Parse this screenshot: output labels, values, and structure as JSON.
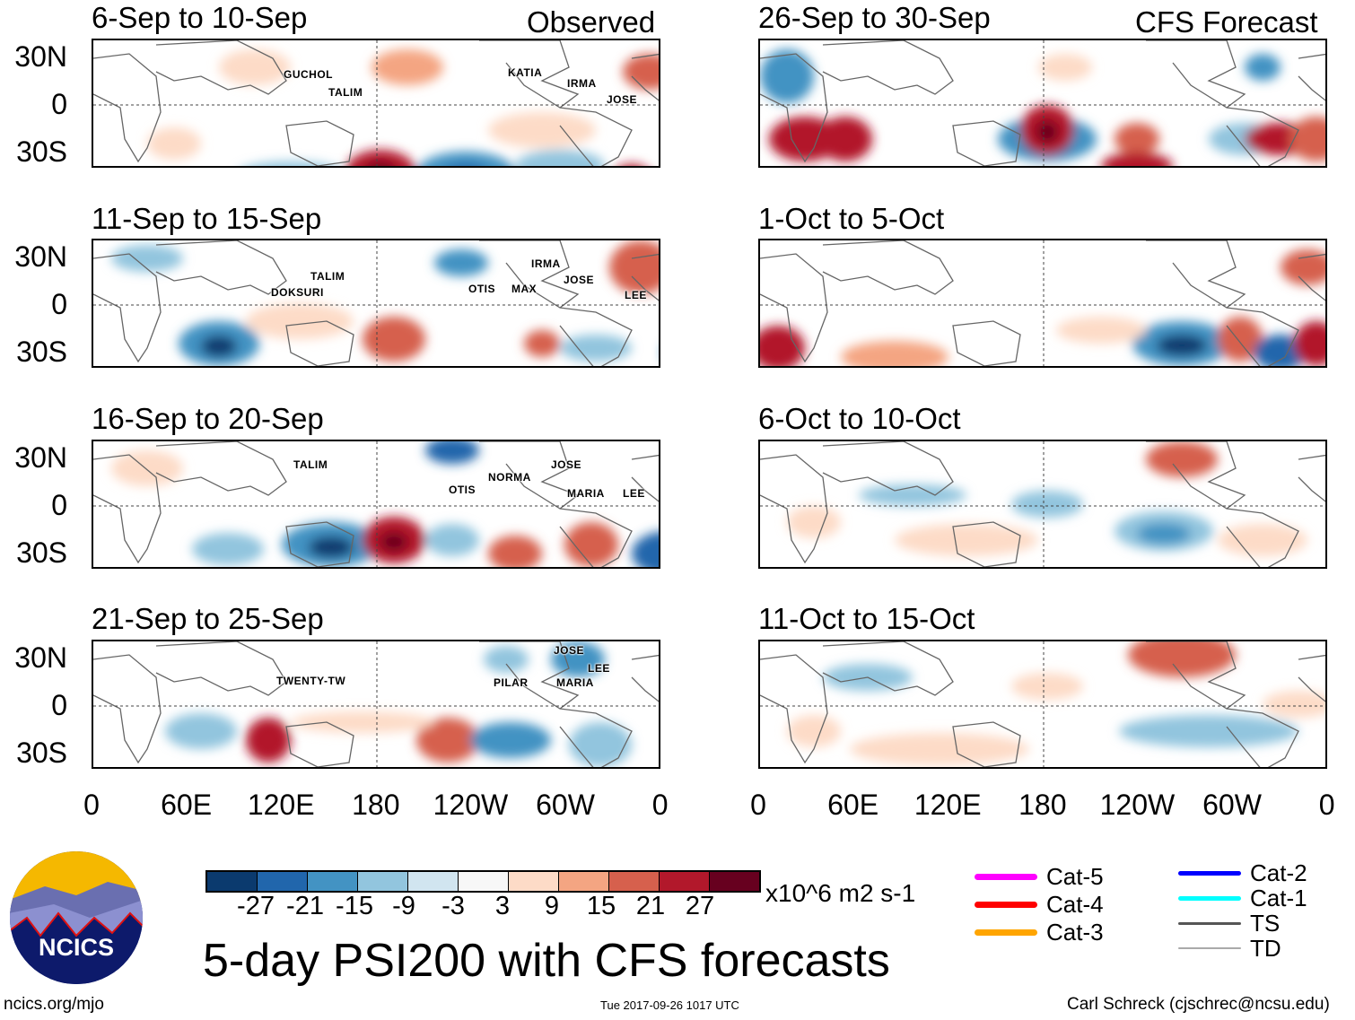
{
  "header": {
    "observed_label": "Observed",
    "forecast_label": "CFS Forecast"
  },
  "lat_labels": [
    "30N",
    "0",
    "30S"
  ],
  "lon_labels": [
    "0",
    "60E",
    "120E",
    "180",
    "120W",
    "60W",
    "0"
  ],
  "panels": [
    {
      "title": "6-Sep to 10-Sep",
      "storms": [
        "GUCHOL",
        "TALIM",
        "KATIA",
        "IRMA",
        "JOSE"
      ]
    },
    {
      "title": "11-Sep to 15-Sep",
      "storms": [
        "TALIM",
        "DOKSURI",
        "OTIS",
        "MAX",
        "IRMA",
        "JOSE",
        "LEE"
      ]
    },
    {
      "title": "16-Sep to 20-Sep",
      "storms": [
        "TALIM",
        "OTIS",
        "NORMA",
        "JOSE",
        "MARIA",
        "LEE"
      ]
    },
    {
      "title": "21-Sep to 25-Sep",
      "storms": [
        "TWENTY-TW",
        "PILAR",
        "JOSE",
        "LEE",
        "MARIA"
      ]
    },
    {
      "title": "26-Sep to 30-Sep"
    },
    {
      "title": "1-Oct to 5-Oct"
    },
    {
      "title": "6-Oct to 10-Oct"
    },
    {
      "title": "11-Oct to 15-Oct"
    }
  ],
  "colorbar": {
    "colors": [
      "#0b3a6e",
      "#2166ac",
      "#4393c3",
      "#92c5de",
      "#d1e5f0",
      "#f7f7f7",
      "#fddbc7",
      "#f4a582",
      "#d6604d",
      "#b2182b",
      "#67001f"
    ],
    "labels": [
      "-27",
      "-21",
      "-15",
      "-9",
      "-3",
      "3",
      "9",
      "15",
      "21",
      "27"
    ],
    "units": "x10^6 m2 s-1"
  },
  "legend": [
    {
      "label": "Cat-5",
      "color": "#ff00ff"
    },
    {
      "label": "Cat-4",
      "color": "#ff0000"
    },
    {
      "label": "Cat-3",
      "color": "#ffa500"
    },
    {
      "label": "Cat-2",
      "color": "#0000ff"
    },
    {
      "label": "Cat-1",
      "color": "#00ffff"
    },
    {
      "label": "TS",
      "color": "#555555"
    },
    {
      "label": "TD",
      "color": "#aaaaaa"
    }
  ],
  "title": "5-day PSI200 with CFS forecasts",
  "logo_text": "NCICS",
  "footer": {
    "left": "ncics.org/mjo",
    "center": "Tue 2017-09-26 1017 UTC",
    "right": "Carl Schreck (cjschrec@ncsu.edu)"
  }
}
